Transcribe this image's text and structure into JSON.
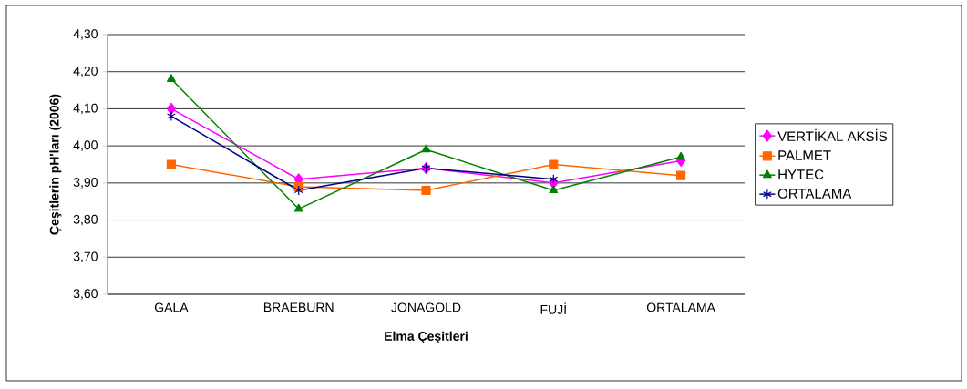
{
  "chart_data": {
    "type": "line",
    "xlabel": "Elma Çeşitleri",
    "ylabel": "Çeşitlerin pH'ları (2006)",
    "categories": [
      "GALA",
      "BRAEBURN",
      "JONAGOLD",
      "FUJİ",
      "ORTALAMA"
    ],
    "series": [
      {
        "name": "VERTİKAL AKSİS",
        "color": "#ff00ff",
        "marker": "diamond",
        "values": [
          4.1,
          3.91,
          3.94,
          3.9,
          3.96
        ]
      },
      {
        "name": "PALMET",
        "color": "#ff6600",
        "marker": "square",
        "values": [
          3.95,
          3.89,
          3.88,
          3.95,
          3.92
        ]
      },
      {
        "name": "HYTEC",
        "color": "#008000",
        "marker": "triangle",
        "values": [
          4.18,
          3.83,
          3.99,
          3.88,
          3.97
        ]
      },
      {
        "name": "ORTALAMA",
        "color": "#000080",
        "marker": "cross",
        "values": [
          4.08,
          3.88,
          3.94,
          3.91,
          null
        ]
      }
    ],
    "ylim": [
      3.6,
      4.3
    ],
    "yticks": [
      {
        "value": 3.6,
        "label": "3,60"
      },
      {
        "value": 3.7,
        "label": "3,70"
      },
      {
        "value": 3.8,
        "label": "3,80"
      },
      {
        "value": 3.9,
        "label": "3,90"
      },
      {
        "value": 4.0,
        "label": "4,00"
      },
      {
        "value": 4.1,
        "label": "4,10"
      },
      {
        "value": 4.2,
        "label": "4,20"
      },
      {
        "value": 4.3,
        "label": "4,30"
      }
    ],
    "grid": "y",
    "legend": "right"
  }
}
